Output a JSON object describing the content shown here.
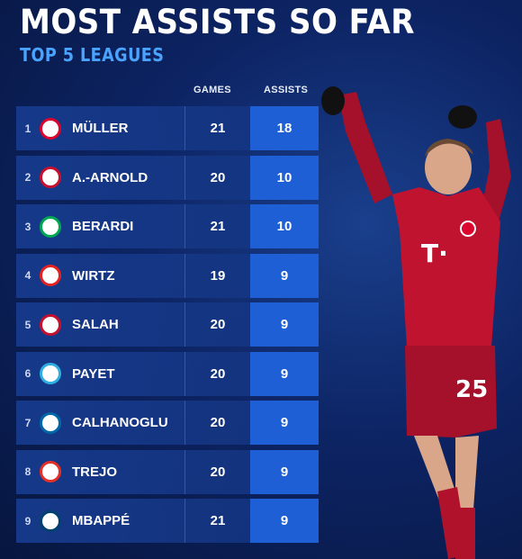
{
  "header": {
    "title": "MOST ASSISTS SO FAR",
    "subtitle": "TOP 5 LEAGUES"
  },
  "columns": {
    "games": "GAMES",
    "assists": "ASSISTS"
  },
  "colors": {
    "accent": "#1e5fd6",
    "subtitle": "#4aa3ff",
    "background": "#0d2464"
  },
  "rows": [
    {
      "rank": "1",
      "name": "MÜLLER",
      "games": "21",
      "assists": "18",
      "crest": "bayern-crest-icon",
      "crest_color": "#dc052d"
    },
    {
      "rank": "2",
      "name": "A.-ARNOLD",
      "games": "20",
      "assists": "10",
      "crest": "liverpool-crest-icon",
      "crest_color": "#c8102e"
    },
    {
      "rank": "3",
      "name": "BERARDI",
      "games": "21",
      "assists": "10",
      "crest": "sassuolo-crest-icon",
      "crest_color": "#00a752"
    },
    {
      "rank": "4",
      "name": "WIRTZ",
      "games": "19",
      "assists": "9",
      "crest": "leverkusen-crest-icon",
      "crest_color": "#e32221"
    },
    {
      "rank": "5",
      "name": "SALAH",
      "games": "20",
      "assists": "9",
      "crest": "liverpool-crest-icon",
      "crest_color": "#c8102e"
    },
    {
      "rank": "6",
      "name": "PAYET",
      "games": "20",
      "assists": "9",
      "crest": "marseille-crest-icon",
      "crest_color": "#2faee0"
    },
    {
      "rank": "7",
      "name": "CALHANOGLU",
      "games": "20",
      "assists": "9",
      "crest": "inter-crest-icon",
      "crest_color": "#0068a8"
    },
    {
      "rank": "8",
      "name": "TREJO",
      "games": "20",
      "assists": "9",
      "crest": "rayo-crest-icon",
      "crest_color": "#e53027"
    },
    {
      "rank": "9",
      "name": "MBAPPÉ",
      "games": "21",
      "assists": "9",
      "crest": "psg-crest-icon",
      "crest_color": "#004170"
    }
  ]
}
